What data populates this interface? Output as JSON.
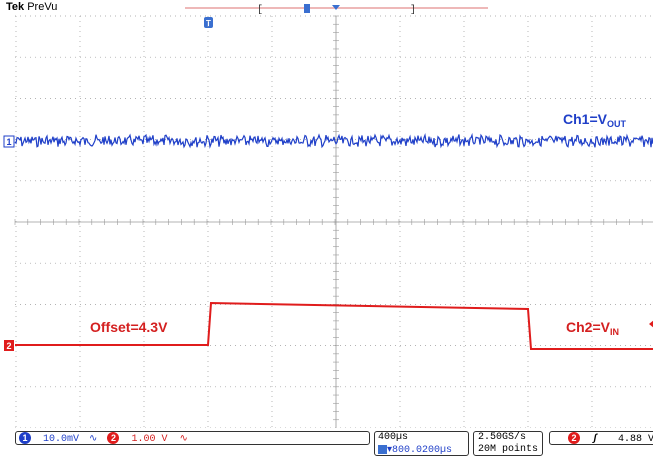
{
  "header": {
    "brand": "Tek",
    "mode": "PreVu"
  },
  "colors": {
    "ch1": "#1f3fc8",
    "ch2": "#e01c1c",
    "grid": "#9a9a9a"
  },
  "annotations": {
    "ch1_label_main": "Ch1=V",
    "ch1_label_sub": "OUT",
    "ch2_label_main": "Ch2=V",
    "ch2_label_sub": "IN",
    "offset_label": "Offset=4.3V"
  },
  "markers": {
    "ch1": "1",
    "ch2": "2",
    "trigger": "T"
  },
  "status": {
    "ch1_badge": "1",
    "ch1_scale": "10.0mV",
    "ch1_bw_icon": "bandwidth-icon",
    "ch2_badge": "2",
    "ch2_scale": "1.00 V",
    "ch2_bw_icon": "bandwidth-icon",
    "timebase": "400µs",
    "trigger_delay": "▾800.0200µs",
    "sample_rate": "2.50GS/s",
    "record_length": "20M points",
    "trigger_source_badge": "2",
    "trigger_slope_icon": "rising-edge-icon",
    "trigger_level": "4.88 V"
  }
}
